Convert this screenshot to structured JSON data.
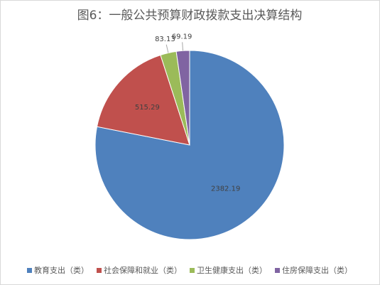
{
  "chart_data": {
    "type": "pie",
    "title": "图6：一般公共预算财政拨款支出决算结构",
    "categories": [
      "教育支出（类）",
      "社会保障和就业（类）",
      "卫生健康支出（类）",
      "住房保障支出（类）"
    ],
    "values": [
      2382.19,
      515.29,
      83.13,
      69.19
    ],
    "colors": [
      "#4f81bd",
      "#c0504d",
      "#9bbb59",
      "#8064a2"
    ],
    "legend": "bottom"
  }
}
